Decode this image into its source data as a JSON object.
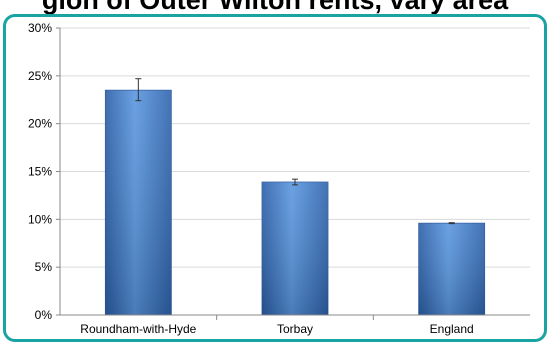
{
  "header": {
    "title_fragment": "gion of Outer Wilton rents, vary area"
  },
  "chart_data": {
    "type": "bar",
    "categories": [
      "Roundham-with-Hyde",
      "Torbay",
      "England"
    ],
    "values": [
      23.5,
      13.9,
      9.6
    ],
    "error_low": [
      22.4,
      13.6,
      9.55
    ],
    "error_high": [
      24.7,
      14.2,
      9.65
    ],
    "ylim": [
      0,
      30
    ],
    "yticks": [
      0,
      5,
      10,
      15,
      20,
      25,
      30
    ],
    "ytick_labels": [
      "0%",
      "5%",
      "10%",
      "15%",
      "20%",
      "25%",
      "30%"
    ],
    "grid": true,
    "bar_color": "#3f7fcf"
  }
}
